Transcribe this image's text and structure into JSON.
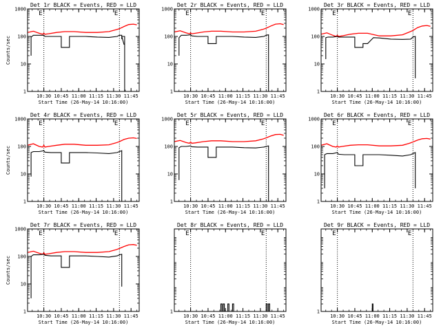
{
  "figure": {
    "rows": 3,
    "cols": 3
  },
  "chart_data": [
    {
      "type": "line",
      "title": "Det 1r BLACK = Events, RED = LLD",
      "xlabel": "Start Time (26-May-14 10:16:00)",
      "ylabel": "Counts/sec",
      "x_unit": "minutes after 10:16:00",
      "xlim": [
        0,
        96
      ],
      "ylim": [
        1,
        1000
      ],
      "yscale": "log",
      "xticks": [
        "10:30",
        "10:45",
        "11:00",
        "11:15",
        "11:30",
        "11:45"
      ],
      "yticks": [
        "1",
        "10",
        "100",
        "1000"
      ],
      "markers": [
        14,
        79
      ],
      "marker_label": "E",
      "series": [
        {
          "color": "#ff0000",
          "x": [
            0,
            5,
            10,
            13,
            14,
            15,
            18,
            25,
            32,
            40,
            50,
            60,
            70,
            76,
            79,
            83,
            87,
            91,
            94
          ],
          "y": [
            140,
            155,
            130,
            120,
            130,
            120,
            125,
            140,
            150,
            150,
            140,
            140,
            150,
            175,
            190,
            230,
            270,
            280,
            265
          ]
        },
        {
          "color": "#000000",
          "x": [
            3,
            3,
            5,
            10,
            14,
            15,
            20,
            29,
            29,
            36,
            36,
            50,
            60,
            70,
            77,
            79,
            81,
            81,
            83
          ],
          "y": [
            20,
            95,
            110,
            110,
            110,
            100,
            100,
            100,
            40,
            40,
            100,
            100,
            95,
            92,
            100,
            110,
            110,
            100,
            50
          ]
        },
        {
          "color": "#000000",
          "x": [
            81,
            81,
            83.5,
            83.5
          ],
          "y": [
            80,
            100,
            100,
            1
          ]
        }
      ]
    },
    {
      "type": "line",
      "title": "Det 2r BLACK = Events, RED = LLD",
      "xlabel": "Start Time (26-May-14 10:16:00)",
      "ylabel": "",
      "x_unit": "minutes after 10:16:00",
      "xlim": [
        0,
        96
      ],
      "ylim": [
        1,
        1000
      ],
      "yscale": "log",
      "xticks": [
        "10:30",
        "10:45",
        "11:00",
        "11:15",
        "11:30",
        "11:45"
      ],
      "yticks": [
        "1",
        "10",
        "100",
        "1000"
      ],
      "markers": [
        14,
        79
      ],
      "marker_label": "E",
      "series": [
        {
          "color": "#ff0000",
          "x": [
            0,
            5,
            10,
            13,
            14,
            15,
            18,
            25,
            32,
            40,
            50,
            60,
            70,
            76,
            79,
            83,
            87,
            91,
            94
          ],
          "y": [
            145,
            160,
            135,
            125,
            135,
            125,
            130,
            145,
            155,
            155,
            145,
            145,
            155,
            180,
            200,
            240,
            280,
            290,
            270
          ]
        },
        {
          "color": "#000000",
          "x": [
            4,
            4,
            6,
            10,
            14,
            15,
            20,
            29,
            29,
            36,
            36,
            50,
            60,
            70,
            77,
            79,
            81,
            81
          ],
          "y": [
            20,
            90,
            110,
            110,
            115,
            105,
            100,
            100,
            55,
            55,
            100,
            100,
            95,
            92,
            100,
            110,
            115,
            1
          ]
        }
      ]
    },
    {
      "type": "line",
      "title": "Det 3r BLACK = Events, RED = LLD",
      "xlabel": "Start Time (26-May-14 10:16:00)",
      "ylabel": "",
      "x_unit": "minutes after 10:16:00",
      "xlim": [
        0,
        96
      ],
      "ylim": [
        1,
        1000
      ],
      "yscale": "log",
      "xticks": [
        "10:30",
        "10:45",
        "11:00",
        "11:15",
        "11:30",
        "11:45"
      ],
      "yticks": [
        "1",
        "10",
        "100",
        "1000"
      ],
      "markers": [
        14,
        79
      ],
      "marker_label": "E",
      "series": [
        {
          "color": "#ff0000",
          "x": [
            0,
            5,
            10,
            13,
            14,
            15,
            18,
            25,
            32,
            40,
            50,
            60,
            70,
            76,
            79,
            83,
            87,
            91,
            94
          ],
          "y": [
            120,
            135,
            110,
            100,
            110,
            100,
            105,
            120,
            130,
            130,
            105,
            105,
            115,
            145,
            165,
            210,
            240,
            250,
            235
          ]
        },
        {
          "color": "#000000",
          "x": [
            4,
            4,
            6,
            10,
            14,
            15,
            20,
            29,
            29,
            36,
            36,
            40,
            45,
            50,
            60,
            70,
            77,
            79,
            81,
            81
          ],
          "y": [
            15,
            90,
            95,
            95,
            100,
            95,
            95,
            95,
            40,
            40,
            55,
            55,
            90,
            88,
            80,
            78,
            80,
            95,
            100,
            3
          ]
        }
      ]
    },
    {
      "type": "line",
      "title": "Det 4r BLACK = Events, RED = LLD",
      "xlabel": "Start Time (26-May-14 10:16:00)",
      "ylabel": "Counts/sec",
      "x_unit": "minutes after 10:16:00",
      "xlim": [
        0,
        96
      ],
      "ylim": [
        1,
        1000
      ],
      "yscale": "log",
      "xticks": [
        "10:30",
        "10:45",
        "11:00",
        "11:15",
        "11:30",
        "11:45"
      ],
      "yticks": [
        "1",
        "10",
        "100",
        "1000"
      ],
      "markers": [
        14,
        79
      ],
      "marker_label": "E",
      "series": [
        {
          "color": "#ff0000",
          "x": [
            0,
            5,
            10,
            13,
            14,
            15,
            18,
            25,
            32,
            40,
            50,
            60,
            70,
            76,
            79,
            83,
            87,
            91,
            94
          ],
          "y": [
            110,
            125,
            100,
            95,
            110,
            95,
            100,
            110,
            120,
            120,
            110,
            110,
            115,
            135,
            150,
            180,
            200,
            205,
            195
          ]
        },
        {
          "color": "#000000",
          "x": [
            3,
            3,
            5,
            10,
            14,
            15,
            20,
            29,
            29,
            36,
            36,
            50,
            60,
            70,
            77,
            79,
            81,
            81
          ],
          "y": [
            8,
            60,
            65,
            65,
            70,
            62,
            60,
            60,
            25,
            25,
            60,
            60,
            58,
            55,
            60,
            65,
            70,
            1
          ]
        }
      ]
    },
    {
      "type": "line",
      "title": "Det 5r BLACK = Events, RED = LLD",
      "xlabel": "Start Time (26-May-14 10:16:00)",
      "ylabel": "",
      "x_unit": "minutes after 10:16:00",
      "xlim": [
        0,
        96
      ],
      "ylim": [
        1,
        1000
      ],
      "yscale": "log",
      "xticks": [
        "10:30",
        "10:45",
        "11:00",
        "11:15",
        "11:30",
        "11:45"
      ],
      "yticks": [
        "1",
        "10",
        "100",
        "1000"
      ],
      "markers": [
        14,
        79
      ],
      "marker_label": "E",
      "series": [
        {
          "color": "#ff0000",
          "x": [
            0,
            5,
            10,
            13,
            14,
            15,
            18,
            25,
            32,
            40,
            50,
            60,
            70,
            76,
            79,
            83,
            87,
            91,
            94
          ],
          "y": [
            150,
            165,
            140,
            130,
            145,
            130,
            135,
            150,
            160,
            160,
            150,
            150,
            160,
            185,
            205,
            240,
            270,
            275,
            255
          ]
        },
        {
          "color": "#000000",
          "x": [
            4,
            4,
            6,
            10,
            14,
            15,
            20,
            29,
            29,
            36,
            36,
            50,
            60,
            70,
            77,
            79,
            81,
            81
          ],
          "y": [
            6,
            90,
            100,
            100,
            105,
            98,
            95,
            95,
            40,
            40,
            95,
            95,
            90,
            88,
            95,
            100,
            105,
            1
          ]
        }
      ]
    },
    {
      "type": "line",
      "title": "Det 6r BLACK = Events, RED = LLD",
      "xlabel": "Start Time (26-May-14 10:16:00)",
      "ylabel": "",
      "x_unit": "minutes after 10:16:00",
      "xlim": [
        0,
        96
      ],
      "ylim": [
        1,
        1000
      ],
      "yscale": "log",
      "xticks": [
        "10:30",
        "10:45",
        "11:00",
        "11:15",
        "11:30",
        "11:45"
      ],
      "yticks": [
        "1",
        "10",
        "100",
        "1000"
      ],
      "markers": [
        14,
        79
      ],
      "marker_label": "E",
      "series": [
        {
          "color": "#ff0000",
          "x": [
            0,
            5,
            10,
            13,
            14,
            15,
            18,
            25,
            32,
            40,
            50,
            60,
            70,
            76,
            79,
            83,
            87,
            91,
            94
          ],
          "y": [
            110,
            125,
            100,
            95,
            105,
            95,
            100,
            110,
            115,
            115,
            105,
            105,
            110,
            130,
            145,
            170,
            190,
            195,
            185
          ]
        },
        {
          "color": "#000000",
          "x": [
            3,
            3,
            5,
            10,
            14,
            15,
            20,
            29,
            29,
            36,
            36,
            50,
            60,
            70,
            77,
            79,
            81,
            81
          ],
          "y": [
            3,
            50,
            55,
            55,
            60,
            52,
            50,
            50,
            20,
            20,
            50,
            50,
            48,
            45,
            50,
            55,
            60,
            3
          ]
        }
      ]
    },
    {
      "type": "line",
      "title": "Det 7r BLACK = Events, RED = LLD",
      "xlabel": "Start Time (26-May-14 10:16:00)",
      "ylabel": "Counts/sec",
      "x_unit": "minutes after 10:16:00",
      "xlim": [
        0,
        96
      ],
      "ylim": [
        1,
        1000
      ],
      "yscale": "log",
      "xticks": [
        "10:30",
        "10:45",
        "11:00",
        "11:15",
        "11:30",
        "11:45"
      ],
      "yticks": [
        "1",
        "10",
        "100",
        "1000"
      ],
      "markers": [
        14,
        79
      ],
      "marker_label": "E",
      "series": [
        {
          "color": "#ff0000",
          "x": [
            0,
            5,
            10,
            13,
            14,
            15,
            18,
            25,
            32,
            40,
            50,
            60,
            70,
            76,
            79,
            83,
            87,
            91,
            94
          ],
          "y": [
            140,
            155,
            130,
            120,
            135,
            120,
            125,
            140,
            150,
            150,
            140,
            140,
            150,
            175,
            195,
            230,
            265,
            270,
            255
          ]
        },
        {
          "color": "#000000",
          "x": [
            3,
            3,
            5,
            10,
            14,
            15,
            20,
            29,
            29,
            36,
            36,
            50,
            60,
            70,
            77,
            79,
            81,
            81
          ],
          "y": [
            3,
            100,
            115,
            115,
            120,
            110,
            105,
            105,
            40,
            40,
            105,
            105,
            100,
            95,
            105,
            115,
            120,
            8
          ]
        }
      ]
    },
    {
      "type": "line",
      "title": "Det 8r BLACK = Events, RED = LLD",
      "xlabel": "Start Time (26-May-14 10:16:00)",
      "ylabel": "",
      "x_unit": "minutes after 10:16:00",
      "xlim": [
        0,
        96
      ],
      "ylim": [
        1,
        2000
      ],
      "yscale": "log",
      "xticks": [
        "10:30",
        "10:45",
        "11:00",
        "11:15",
        "11:30",
        "11:45"
      ],
      "yticks": [
        "1"
      ],
      "markers": [
        14,
        79
      ],
      "marker_label": "E",
      "series": [
        {
          "color": "#000000",
          "x": [
            40,
            40,
            41,
            41,
            42,
            42,
            43,
            43,
            46,
            46,
            47,
            47,
            50,
            50,
            51,
            51,
            79,
            79,
            80,
            80,
            81,
            81,
            82,
            82
          ],
          "y": [
            1,
            2,
            2,
            1,
            1,
            2,
            2,
            1,
            1,
            2,
            2,
            1,
            1,
            2,
            2,
            1,
            1,
            2,
            2,
            1,
            1,
            2,
            2,
            1
          ]
        }
      ]
    },
    {
      "type": "line",
      "title": "Det 9r BLACK = Events, RED = LLD",
      "xlabel": "Start Time (26-May-14 10:16:00)",
      "ylabel": "",
      "x_unit": "minutes after 10:16:00",
      "xlim": [
        0,
        96
      ],
      "ylim": [
        1,
        2000
      ],
      "yscale": "log",
      "xticks": [
        "10:30",
        "10:45",
        "11:00",
        "11:15",
        "11:30",
        "11:45"
      ],
      "yticks": [
        "1"
      ],
      "markers": [
        14,
        79
      ],
      "marker_label": "E",
      "series": [
        {
          "color": "#000000",
          "x": [
            44,
            44,
            44.6,
            44.6
          ],
          "y": [
            1,
            2,
            2,
            1
          ]
        }
      ]
    }
  ]
}
